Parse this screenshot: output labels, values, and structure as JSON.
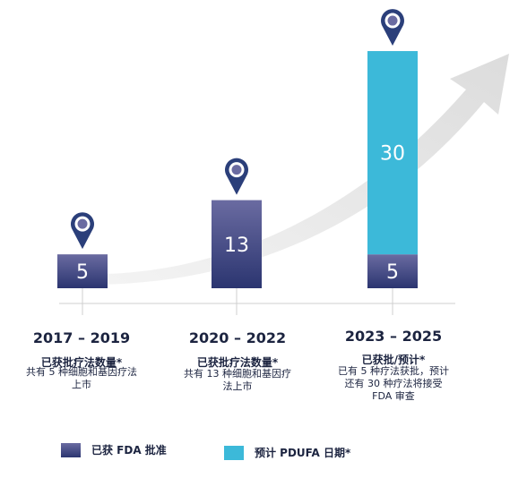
{
  "chart_data": {
    "type": "bar",
    "stacked": true,
    "categories": [
      "2017 – 2019",
      "2020 – 2022",
      "2023 – 2025"
    ],
    "series": [
      {
        "name": "已获 FDA 批准",
        "color": "#2e3a75",
        "values": [
          5,
          13,
          5
        ]
      },
      {
        "name": "预计 PDUFA 日期*",
        "color": "#3cb9d9",
        "values": [
          0,
          0,
          30
        ]
      }
    ],
    "ylim": [
      0,
      35
    ],
    "subtitles": [
      "已获批疗法数量*",
      "已获批疗法数量*",
      "已获批/预计*"
    ],
    "descriptions": [
      [
        "共有 5 种细胞和基因疗法",
        "上市"
      ],
      [
        "共有 13 种细胞和基因疗",
        "法上市"
      ],
      [
        "已有 5 种疗法获批，预计",
        "还有 30 种疗法将接受",
        "FDA 审查"
      ]
    ],
    "legend": [
      "已获 FDA 批准",
      "预计 PDUFA 日期*"
    ],
    "grid": false,
    "legend_position": "bottom-left"
  },
  "icons": [
    "location-pin-icon",
    "location-pin-icon",
    "location-pin-icon"
  ],
  "colors": {
    "approved": "#2e3a75",
    "expected": "#3cb9d9",
    "arrow": "#e6e6e6",
    "pin": "#2b3f7a"
  }
}
